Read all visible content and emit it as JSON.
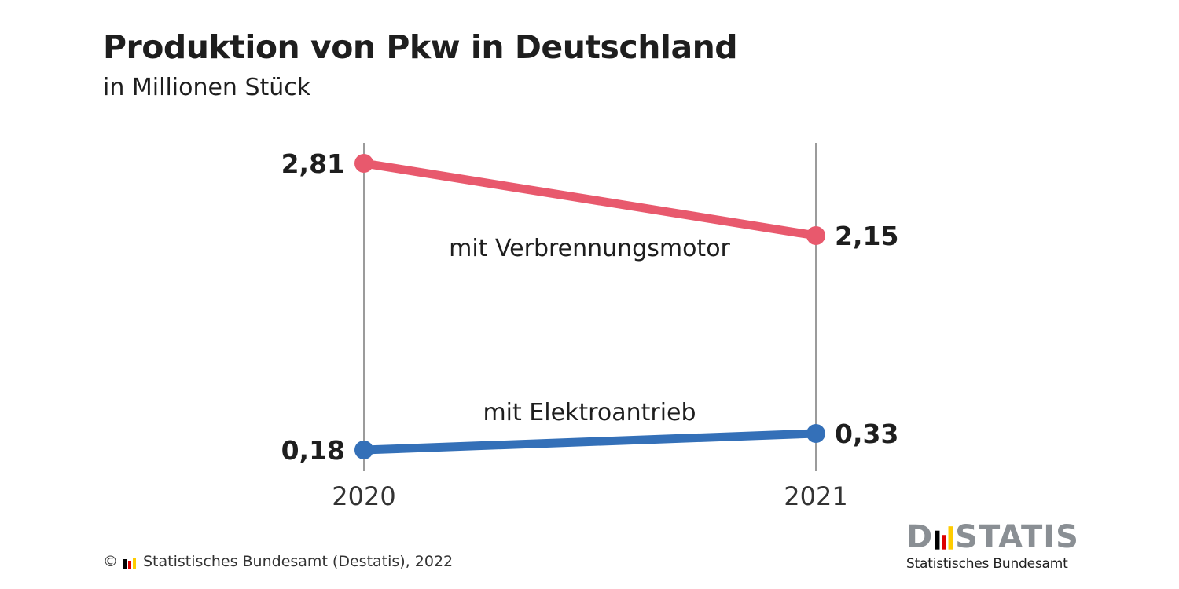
{
  "header": {
    "title": "Produktion von Pkw in Deutschland",
    "subtitle": "in Millionen Stück"
  },
  "chart_data": {
    "type": "line",
    "x": [
      "2020",
      "2021"
    ],
    "series": [
      {
        "name": "mit Verbrennungsmotor",
        "values": [
          2.81,
          2.15
        ],
        "value_labels": [
          "2,81",
          "2,15"
        ],
        "color": "#e8596d"
      },
      {
        "name": "mit Elektroantrieb",
        "values": [
          0.18,
          0.33
        ],
        "value_labels": [
          "0,18",
          "0,33"
        ],
        "color": "#3470b8"
      }
    ],
    "ylim": [
      0,
      3
    ],
    "grid": false,
    "axis_color": "#7a7a7a"
  },
  "footer": {
    "copyright": "©",
    "source": "Statistisches Bundesamt (Destatis), 2022"
  },
  "logo": {
    "word_prefix": "D",
    "word_suffix": "STATIS",
    "subtitle": "Statistisches Bundesamt",
    "flag_colors": [
      "#000000",
      "#dd0000",
      "#ffcc00"
    ]
  }
}
